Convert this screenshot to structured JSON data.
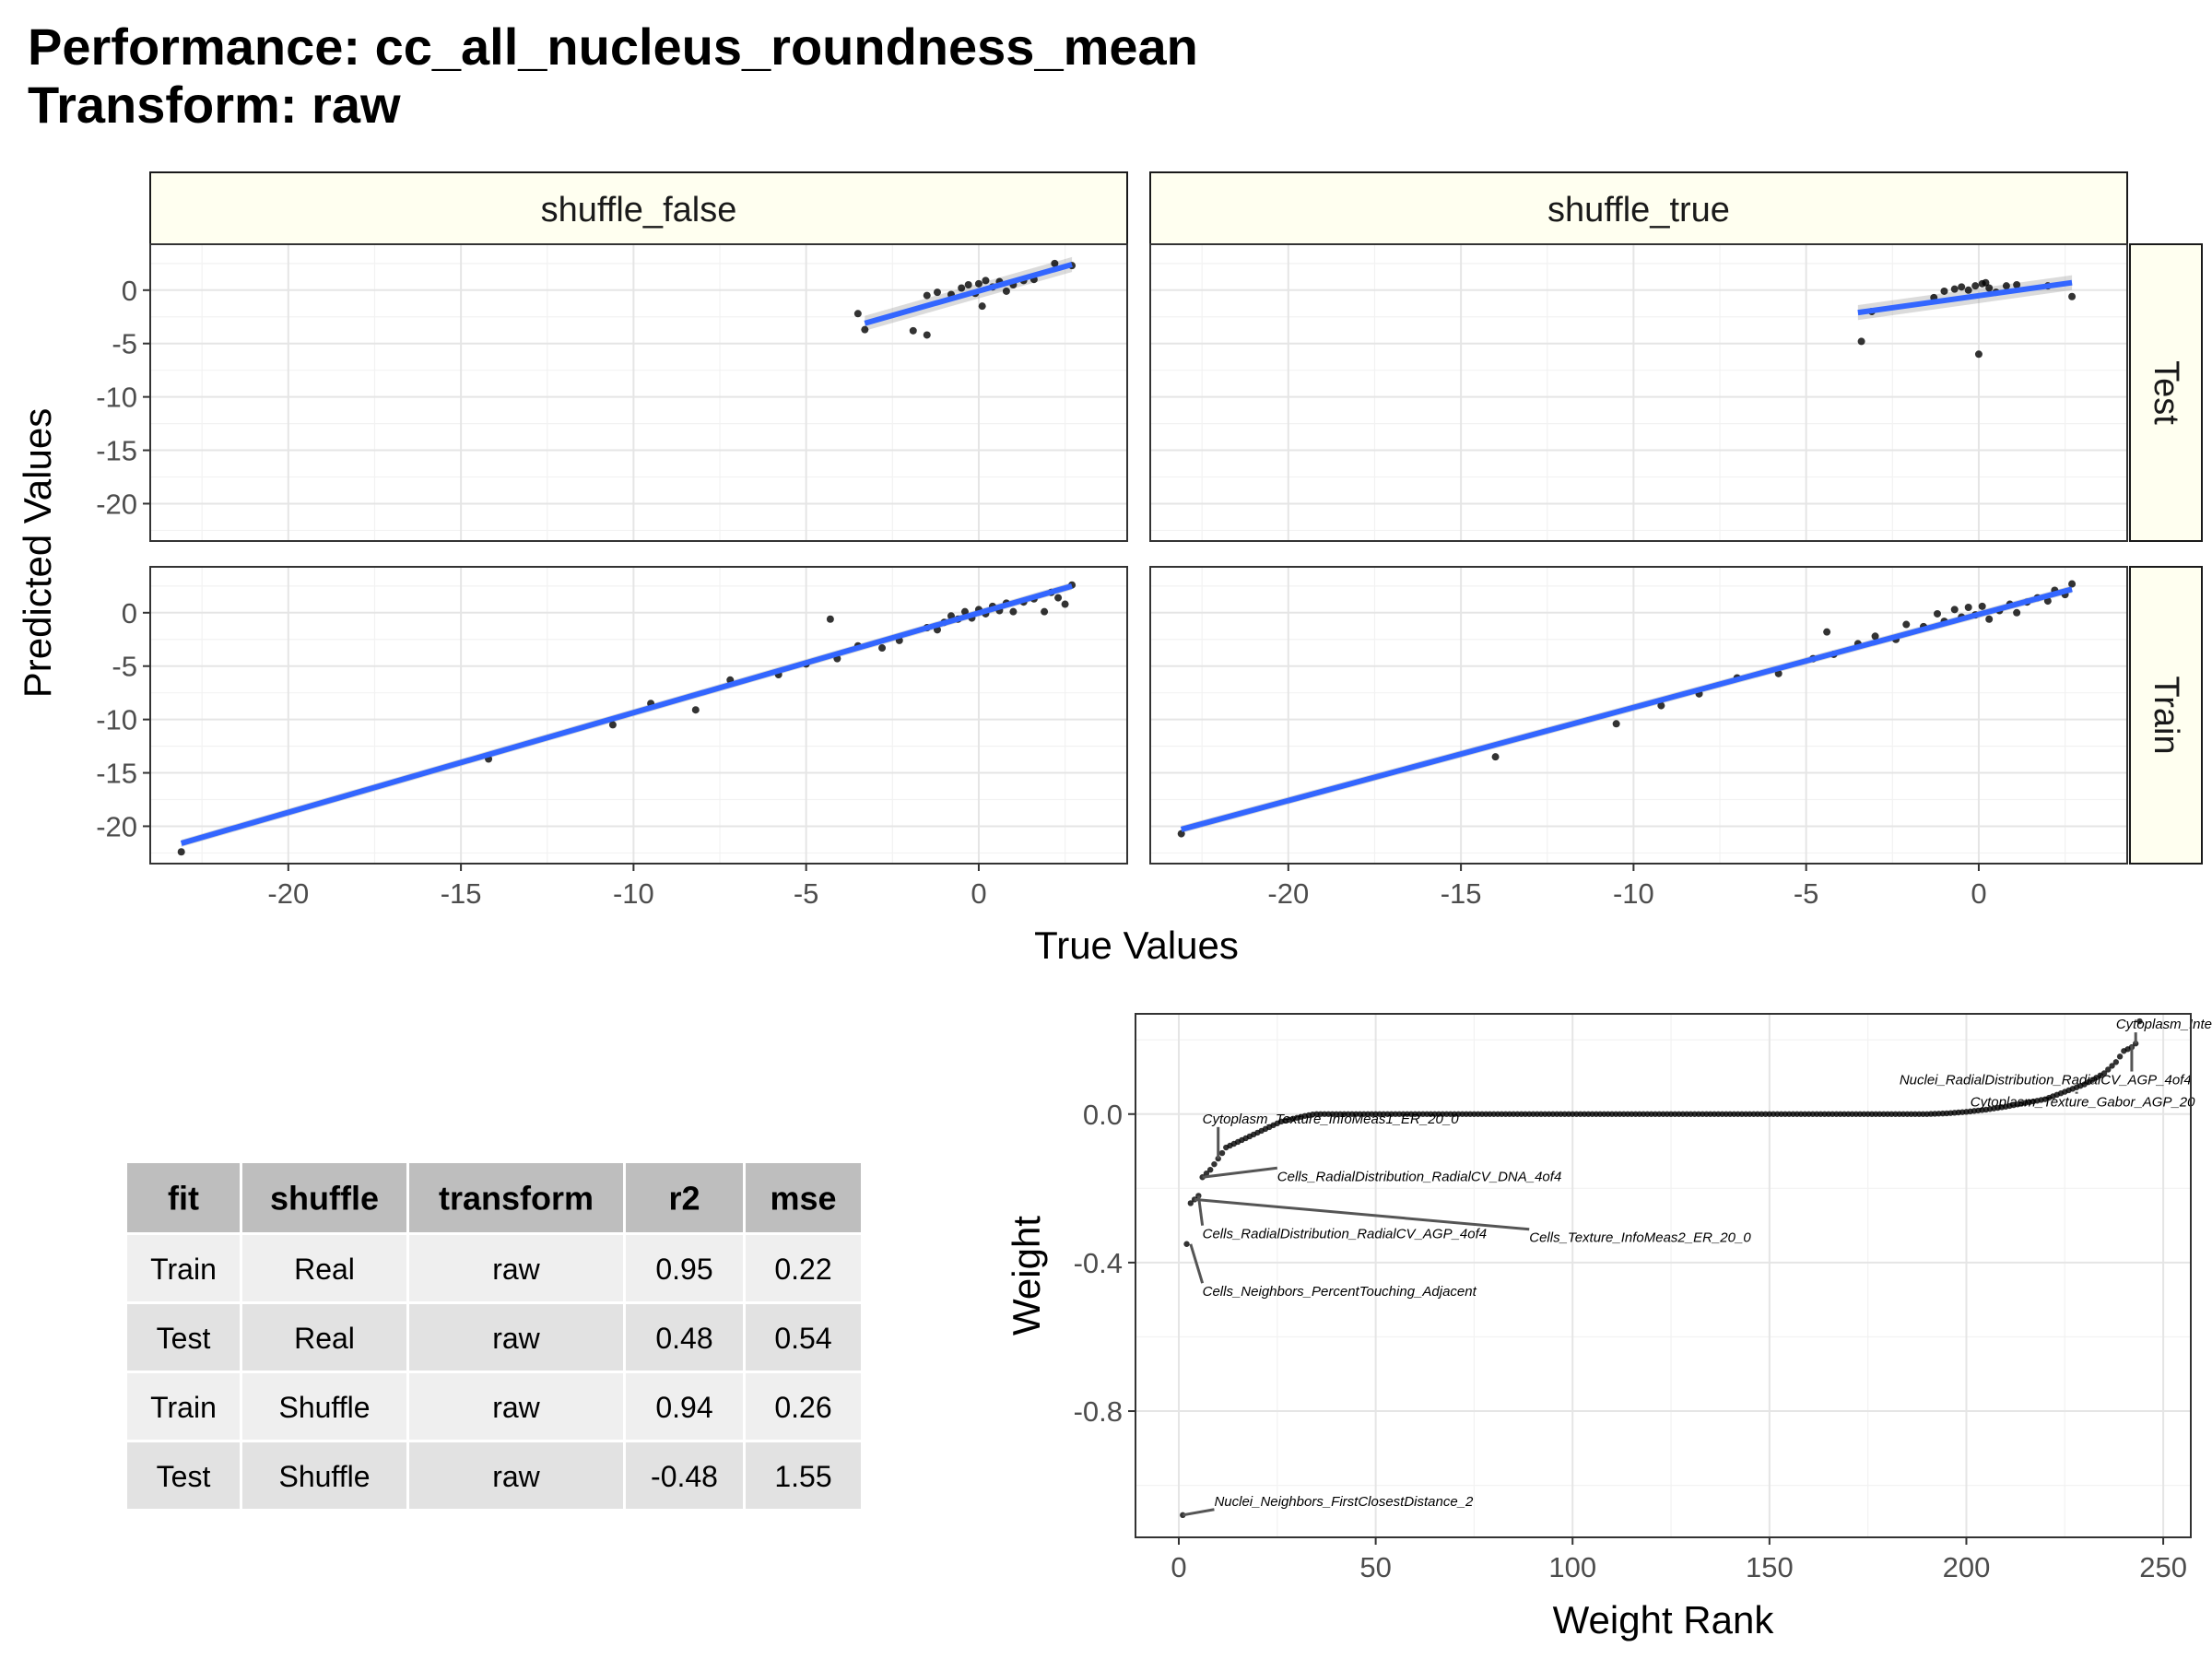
{
  "title": "Performance: cc_all_nucleus_roundness_mean",
  "subtitle": "Transform: raw",
  "chart_data": [
    {
      "type": "scatter",
      "facets": {
        "columns": [
          "shuffle_false",
          "shuffle_true"
        ],
        "rows": [
          "Test",
          "Train"
        ]
      },
      "xlabel": "True Values",
      "ylabel": "Predicted Values",
      "xlim": [
        -24,
        4.3
      ],
      "ylim": [
        -23.5,
        4.3
      ],
      "x_ticks": [
        -20,
        -15,
        -10,
        -5,
        0
      ],
      "y_ticks": [
        0,
        -5,
        -10,
        -15,
        -20
      ],
      "grid": true,
      "smooth_color": "#3366ff",
      "panels": [
        {
          "column": "shuffle_false",
          "row": "Test",
          "fit": {
            "x": [
              -3.3,
              2.7
            ],
            "y": [
              -3.1,
              2.4
            ]
          },
          "points": [
            [
              -3.5,
              -2.2
            ],
            [
              -3.3,
              -3.7
            ],
            [
              -1.9,
              -3.8
            ],
            [
              -1.5,
              -4.2
            ],
            [
              -1.5,
              -0.5
            ],
            [
              -1.2,
              -0.2
            ],
            [
              -0.8,
              -0.4
            ],
            [
              -0.5,
              0.2
            ],
            [
              -0.3,
              0.5
            ],
            [
              -0.1,
              -0.3
            ],
            [
              0.0,
              0.6
            ],
            [
              0.1,
              -1.5
            ],
            [
              0.2,
              0.9
            ],
            [
              0.4,
              0.3
            ],
            [
              0.6,
              0.8
            ],
            [
              0.8,
              -0.1
            ],
            [
              1.0,
              0.5
            ],
            [
              1.3,
              0.9
            ],
            [
              1.6,
              1.0
            ],
            [
              2.2,
              2.5
            ],
            [
              2.7,
              2.3
            ]
          ]
        },
        {
          "column": "shuffle_true",
          "row": "Test",
          "fit": {
            "x": [
              -3.5,
              2.7
            ],
            "y": [
              -2.1,
              0.7
            ]
          },
          "points": [
            [
              -3.4,
              -4.8
            ],
            [
              -3.1,
              -2.0
            ],
            [
              -1.3,
              -0.7
            ],
            [
              -1.0,
              -0.1
            ],
            [
              -0.7,
              0.1
            ],
            [
              -0.5,
              0.3
            ],
            [
              -0.3,
              0.0
            ],
            [
              -0.1,
              0.4
            ],
            [
              0.0,
              -6.0
            ],
            [
              0.1,
              0.6
            ],
            [
              0.2,
              0.7
            ],
            [
              0.3,
              0.2
            ],
            [
              0.5,
              -0.2
            ],
            [
              0.8,
              0.4
            ],
            [
              1.1,
              0.5
            ],
            [
              2.0,
              0.4
            ],
            [
              2.7,
              -0.6
            ]
          ]
        },
        {
          "column": "shuffle_false",
          "row": "Train",
          "fit": {
            "x": [
              -23.1,
              2.7
            ],
            "y": [
              -21.6,
              2.5
            ]
          },
          "points": [
            [
              -23.1,
              -22.4
            ],
            [
              -14.2,
              -13.7
            ],
            [
              -10.6,
              -10.5
            ],
            [
              -9.5,
              -8.5
            ],
            [
              -8.2,
              -9.1
            ],
            [
              -7.2,
              -6.3
            ],
            [
              -5.8,
              -5.8
            ],
            [
              -5.0,
              -4.8
            ],
            [
              -4.3,
              -0.6
            ],
            [
              -4.1,
              -4.3
            ],
            [
              -3.5,
              -3.1
            ],
            [
              -2.8,
              -3.3
            ],
            [
              -2.3,
              -2.6
            ],
            [
              -1.5,
              -1.4
            ],
            [
              -1.2,
              -1.6
            ],
            [
              -1.0,
              -0.9
            ],
            [
              -0.8,
              -0.3
            ],
            [
              -0.6,
              -0.6
            ],
            [
              -0.4,
              0.1
            ],
            [
              -0.2,
              -0.5
            ],
            [
              0.0,
              0.3
            ],
            [
              0.2,
              -0.1
            ],
            [
              0.4,
              0.6
            ],
            [
              0.6,
              0.2
            ],
            [
              0.8,
              0.9
            ],
            [
              1.0,
              0.1
            ],
            [
              1.3,
              1.0
            ],
            [
              1.6,
              1.3
            ],
            [
              1.9,
              0.1
            ],
            [
              2.1,
              1.9
            ],
            [
              2.3,
              1.4
            ],
            [
              2.5,
              0.8
            ],
            [
              2.7,
              2.6
            ]
          ]
        },
        {
          "column": "shuffle_true",
          "row": "Train",
          "fit": {
            "x": [
              -23.1,
              2.7
            ],
            "y": [
              -20.3,
              2.2
            ]
          },
          "points": [
            [
              -23.1,
              -20.7
            ],
            [
              -14.0,
              -13.5
            ],
            [
              -10.5,
              -10.4
            ],
            [
              -9.2,
              -8.7
            ],
            [
              -8.1,
              -7.6
            ],
            [
              -7.0,
              -6.1
            ],
            [
              -5.8,
              -5.7
            ],
            [
              -4.8,
              -4.3
            ],
            [
              -4.4,
              -1.8
            ],
            [
              -4.2,
              -3.9
            ],
            [
              -3.5,
              -2.9
            ],
            [
              -3.0,
              -2.2
            ],
            [
              -2.4,
              -2.5
            ],
            [
              -2.1,
              -1.1
            ],
            [
              -1.6,
              -1.3
            ],
            [
              -1.2,
              -0.1
            ],
            [
              -1.0,
              -0.8
            ],
            [
              -0.7,
              0.3
            ],
            [
              -0.5,
              -0.4
            ],
            [
              -0.3,
              0.5
            ],
            [
              -0.1,
              -0.2
            ],
            [
              0.1,
              0.6
            ],
            [
              0.3,
              -0.6
            ],
            [
              0.6,
              0.2
            ],
            [
              0.9,
              0.8
            ],
            [
              1.1,
              0.0
            ],
            [
              1.4,
              1.0
            ],
            [
              1.7,
              1.4
            ],
            [
              2.0,
              1.1
            ],
            [
              2.2,
              2.1
            ],
            [
              2.5,
              1.7
            ],
            [
              2.7,
              2.7
            ]
          ]
        }
      ]
    },
    {
      "type": "table",
      "columns": [
        "fit",
        "shuffle",
        "transform",
        "r2",
        "mse"
      ],
      "rows": [
        [
          "Train",
          "Real",
          "raw",
          "0.95",
          "0.22"
        ],
        [
          "Test",
          "Real",
          "raw",
          "0.48",
          "0.54"
        ],
        [
          "Train",
          "Shuffle",
          "raw",
          "0.94",
          "0.26"
        ],
        [
          "Test",
          "Shuffle",
          "raw",
          "-0.48",
          "1.55"
        ]
      ]
    },
    {
      "type": "scatter",
      "xlabel": "Weight Rank",
      "ylabel": "Weight",
      "xlim": [
        -11,
        257
      ],
      "ylim": [
        -1.14,
        0.27
      ],
      "x_ticks": [
        0,
        50,
        100,
        150,
        200,
        250
      ],
      "y_ticks": [
        0.0,
        -0.4,
        -0.8
      ],
      "y_tick_labels": [
        "0.0",
        "-0.4",
        "-0.8"
      ],
      "grid": true,
      "curve": {
        "x": [
          1,
          2,
          3,
          4,
          5,
          6,
          8,
          10,
          12,
          14,
          16,
          18,
          20,
          22,
          24,
          26,
          28,
          30,
          32,
          34,
          35,
          40,
          60,
          100,
          150,
          190,
          195,
          200,
          205,
          210,
          215,
          220,
          225,
          230,
          235,
          238,
          240,
          242,
          243,
          244
        ],
        "y": [
          -1.08,
          -0.35,
          -0.24,
          -0.23,
          -0.22,
          -0.17,
          -0.15,
          -0.12,
          -0.09,
          -0.08,
          -0.07,
          -0.06,
          -0.05,
          -0.04,
          -0.03,
          -0.02,
          -0.015,
          -0.01,
          -0.005,
          -0.001,
          0.0,
          0.0,
          0.0,
          0.0,
          0.0,
          0.0,
          0.002,
          0.006,
          0.012,
          0.02,
          0.03,
          0.04,
          0.06,
          0.08,
          0.11,
          0.14,
          0.17,
          0.18,
          0.19,
          0.25
        ]
      },
      "labels": [
        {
          "text": "Cytoplasm_Intensity_IntegratedIntensity_ER",
          "x": 238,
          "y": 0.23,
          "point": [
            243,
            0.19
          ]
        },
        {
          "text": "Nuclei_RadialDistribution_RadialCV_AGP_4of4",
          "x": 183,
          "y": 0.08,
          "point": [
            242,
            0.185
          ]
        },
        {
          "text": "Cytoplasm_Texture_Gabor_AGP_20",
          "x": 201,
          "y": 0.02,
          "point": [
            228,
            0.06
          ]
        },
        {
          "text": "Cytoplasm_Texture_InfoMeas1_ER_20_0",
          "x": 6,
          "y": -0.025,
          "point": [
            10,
            -0.12
          ]
        },
        {
          "text": "Cells_RadialDistribution_RadialCV_DNA_4of4",
          "x": 25,
          "y": -0.18,
          "point": [
            6,
            -0.17
          ]
        },
        {
          "text": "Cells_RadialDistribution_RadialCV_AGP_4of4",
          "x": 6,
          "y": -0.335,
          "point": [
            5,
            -0.22
          ]
        },
        {
          "text": "Cells_Texture_InfoMeas2_ER_20_0",
          "x": 89,
          "y": -0.345,
          "point": [
            4,
            -0.23
          ]
        },
        {
          "text": "Cells_Neighbors_PercentTouching_Adjacent",
          "x": 6,
          "y": -0.49,
          "point": [
            3,
            -0.35
          ]
        },
        {
          "text": "Nuclei_Neighbors_FirstClosestDistance_2",
          "x": 9,
          "y": -1.055,
          "point": [
            1,
            -1.08
          ]
        }
      ]
    }
  ]
}
